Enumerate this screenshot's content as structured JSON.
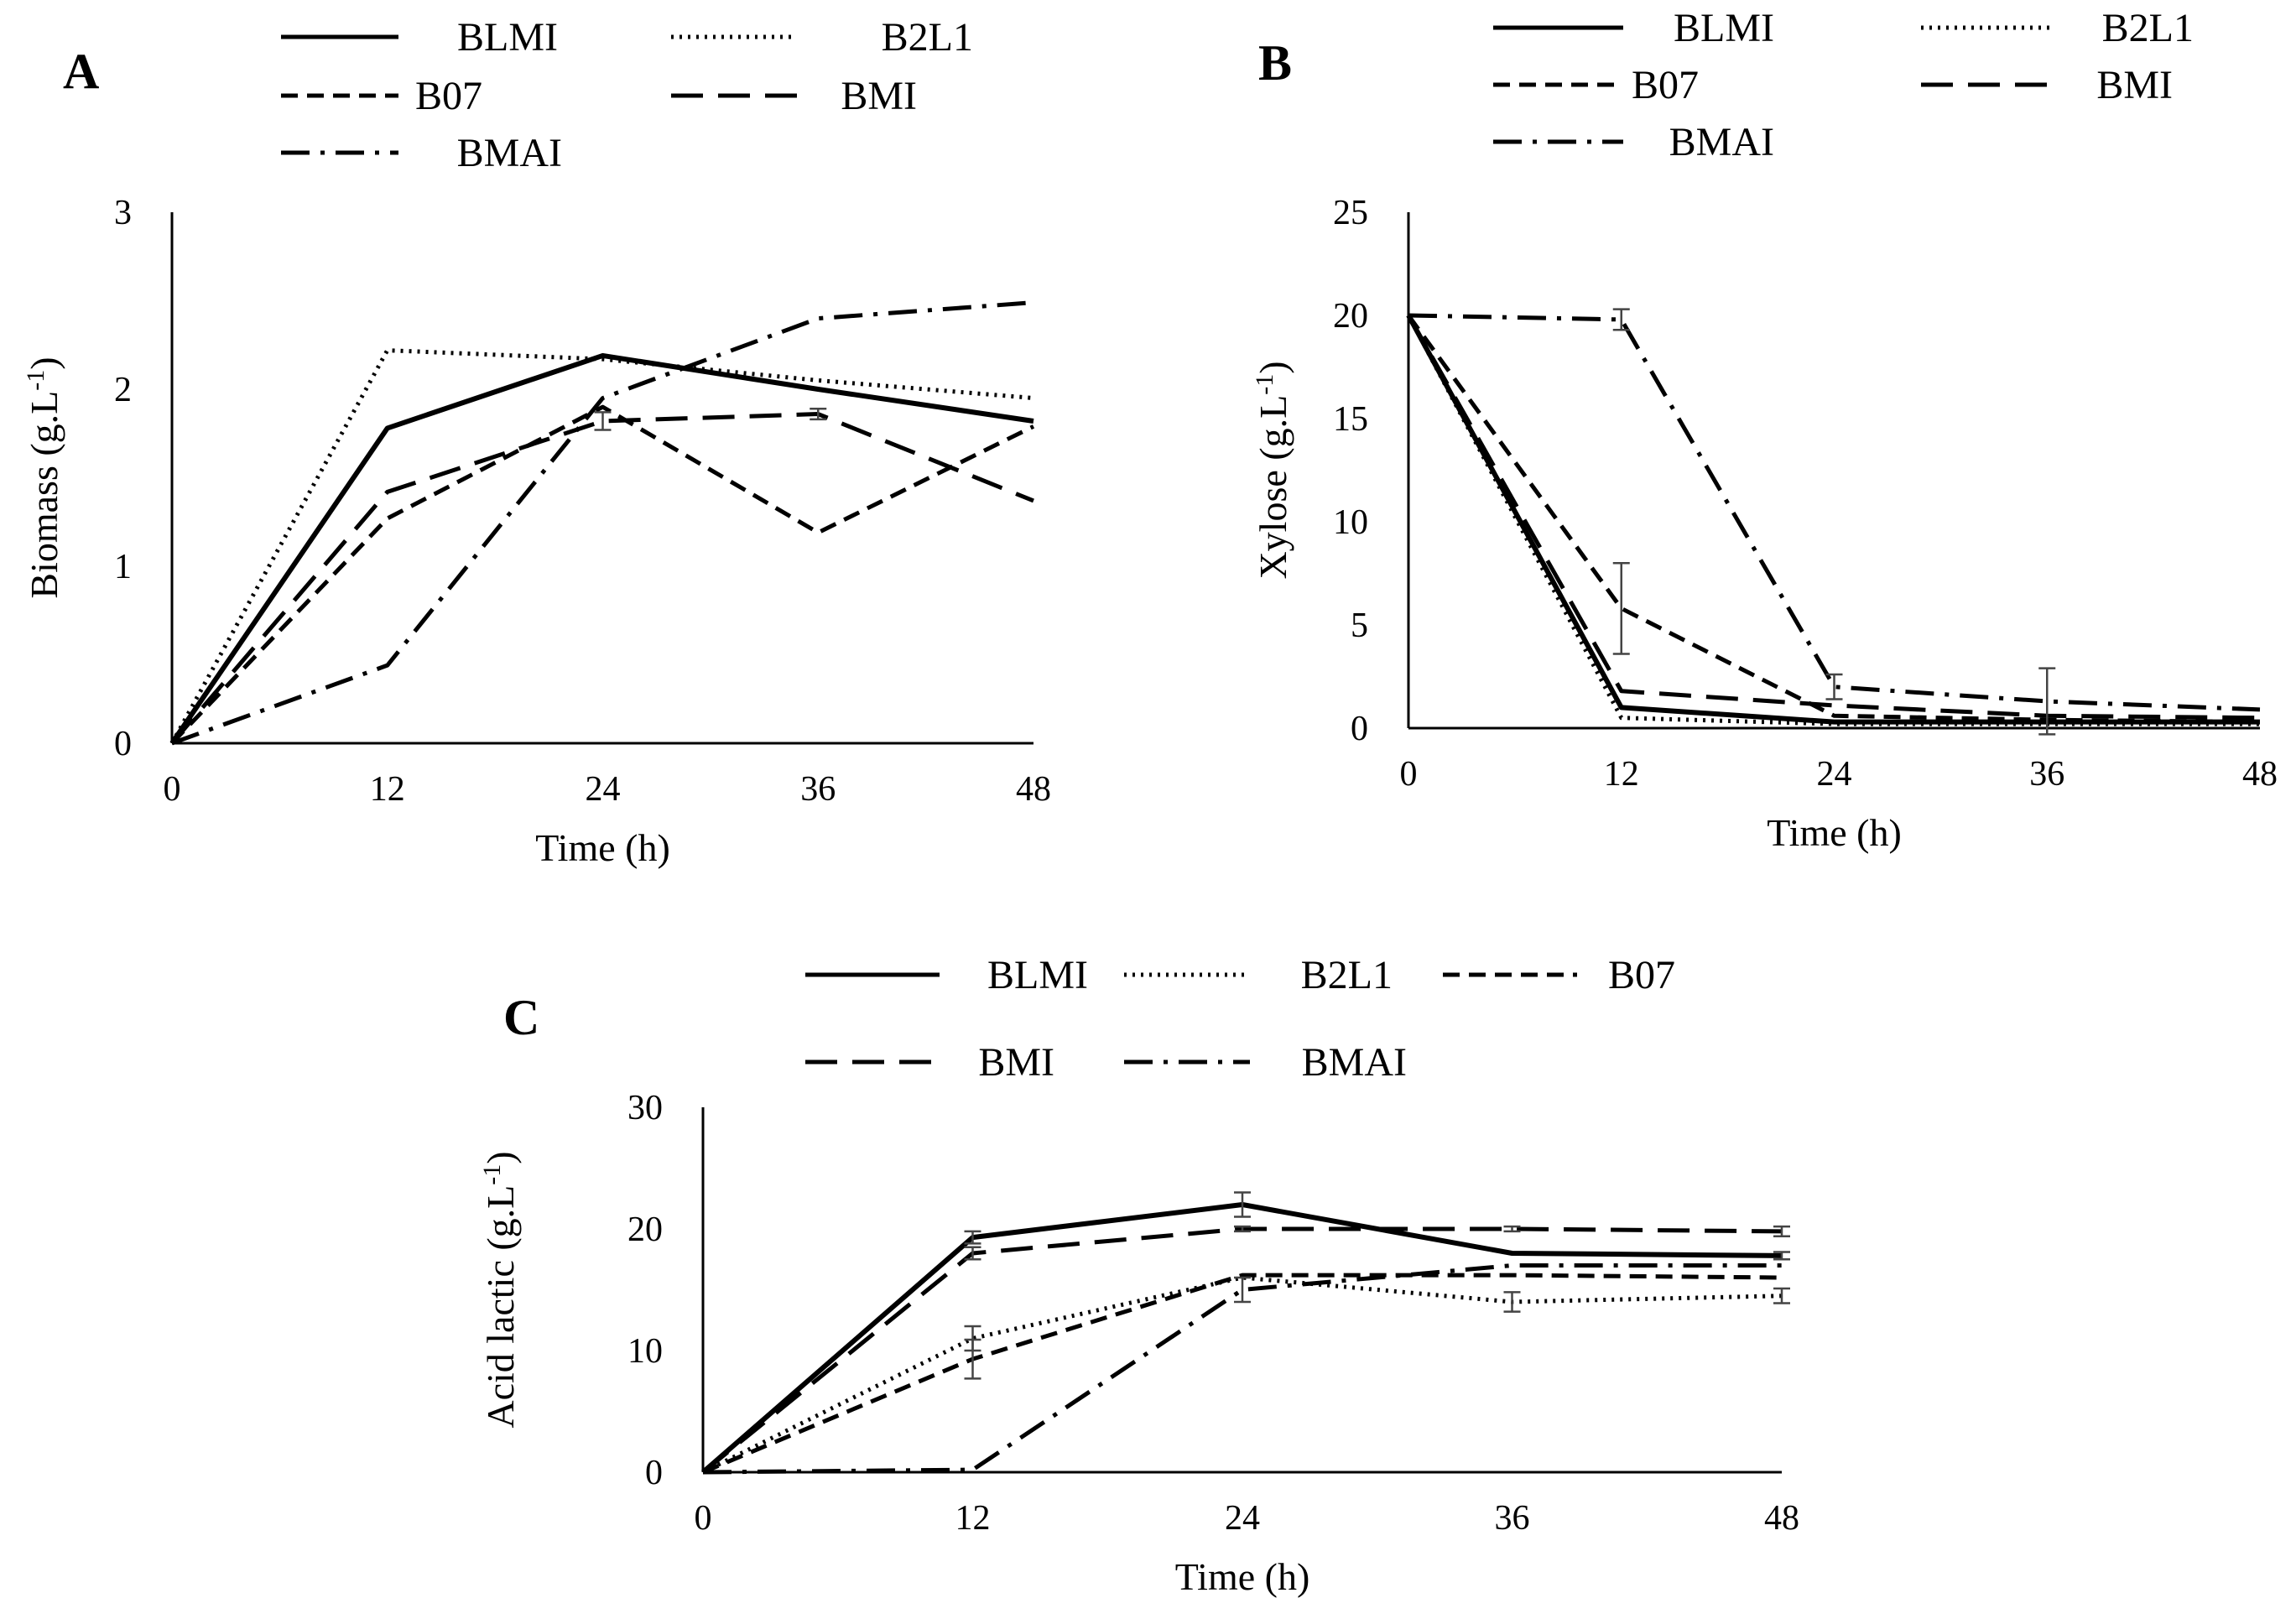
{
  "figure": {
    "legend_styles": {
      "BLMI": "solid",
      "B2L1": "dotted",
      "B07": "short-dash",
      "BMI": "long-dash",
      "BMAI": "dash-dot"
    },
    "line_color": "#000000",
    "errorbar_color": "#444444"
  },
  "chart_data": [
    {
      "id": "A",
      "panel_label": "A",
      "type": "line",
      "xlabel": "Time (h)",
      "ylabel": "Biomass (g.L-1)",
      "ylabel_main": "Biomass (g.L",
      "ylabel_sup": "-1",
      "ylabel_tail": ")",
      "x": [
        0,
        12,
        24,
        36,
        48
      ],
      "x_ticks": [
        "0",
        "12",
        "24",
        "36",
        "48"
      ],
      "ylim": [
        0,
        3
      ],
      "y_ticks": [
        "0",
        "1",
        "2",
        "3"
      ],
      "legend": [
        "BLMI",
        "B2L1",
        "B07",
        "BMI",
        "BMAI"
      ],
      "series": [
        {
          "name": "BLMI",
          "values": [
            0,
            1.78,
            2.19,
            2.0,
            1.82
          ],
          "err": [
            0,
            0,
            0,
            0,
            0
          ]
        },
        {
          "name": "B2L1",
          "values": [
            0,
            2.22,
            2.17,
            2.05,
            1.95
          ],
          "err": [
            0,
            0,
            0,
            0,
            0
          ]
        },
        {
          "name": "B07",
          "values": [
            0,
            1.27,
            1.9,
            1.19,
            1.79
          ],
          "err": [
            0,
            0,
            0,
            0,
            0
          ]
        },
        {
          "name": "BMI",
          "values": [
            0,
            1.42,
            1.82,
            1.86,
            1.37
          ],
          "err": [
            0,
            0,
            0.05,
            0.03,
            0
          ]
        },
        {
          "name": "BMAI",
          "values": [
            0,
            0.44,
            1.95,
            2.4,
            2.49
          ],
          "err": [
            0,
            0,
            0,
            0,
            0
          ]
        }
      ]
    },
    {
      "id": "B",
      "panel_label": "B",
      "type": "line",
      "xlabel": "Time (h)",
      "ylabel": "Xylose (g.L-1)",
      "ylabel_main": "Xylose (g.L",
      "ylabel_sup": "-1",
      "ylabel_tail": ")",
      "x": [
        0,
        12,
        24,
        36,
        48
      ],
      "x_ticks": [
        "0",
        "12",
        "24",
        "36",
        "48"
      ],
      "ylim": [
        0,
        25
      ],
      "y_ticks": [
        "0",
        "5",
        "10",
        "15",
        "20",
        "25"
      ],
      "legend": [
        "BLMI",
        "B2L1",
        "B07",
        "BMI",
        "BMAI"
      ],
      "series": [
        {
          "name": "BLMI",
          "values": [
            20,
            1.0,
            0.3,
            0.3,
            0.3
          ],
          "err": [
            0,
            0,
            0,
            0,
            0
          ]
        },
        {
          "name": "B2L1",
          "values": [
            20,
            0.5,
            0.2,
            0.2,
            0.2
          ],
          "err": [
            0,
            0,
            0,
            0,
            0
          ]
        },
        {
          "name": "B07",
          "values": [
            20,
            5.8,
            0.6,
            0.4,
            0.3
          ],
          "err": [
            0,
            2.2,
            0,
            0,
            0
          ]
        },
        {
          "name": "BMI",
          "values": [
            20,
            1.8,
            1.1,
            0.6,
            0.5
          ],
          "err": [
            0,
            0,
            0,
            0,
            0
          ]
        },
        {
          "name": "BMAI",
          "values": [
            20,
            19.8,
            2.0,
            1.3,
            0.9
          ],
          "err": [
            0,
            0.5,
            0.6,
            1.6,
            0
          ]
        }
      ]
    },
    {
      "id": "C",
      "panel_label": "C",
      "type": "line",
      "xlabel": "Time (h)",
      "ylabel": "Acid lactic (g.L-1)",
      "ylabel_main": "Acid lactic (g.L",
      "ylabel_sup": "-1",
      "ylabel_tail": ")",
      "x": [
        0,
        12,
        24,
        36,
        48
      ],
      "x_ticks": [
        "0",
        "12",
        "24",
        "36",
        "48"
      ],
      "ylim": [
        0,
        30
      ],
      "y_ticks": [
        "0",
        "10",
        "20",
        "30"
      ],
      "legend": [
        "BLMI",
        "B2L1",
        "B07",
        "BMI",
        "BMAI"
      ],
      "series": [
        {
          "name": "BLMI",
          "values": [
            0,
            19.3,
            22.0,
            18.0,
            17.8
          ],
          "err": [
            0,
            0.5,
            1.0,
            0,
            0.3
          ]
        },
        {
          "name": "B2L1",
          "values": [
            0,
            11.0,
            16.0,
            14.0,
            14.5
          ],
          "err": [
            0,
            1.0,
            0,
            0.8,
            0.6
          ]
        },
        {
          "name": "B07",
          "values": [
            0,
            9.3,
            16.2,
            16.2,
            16.0
          ],
          "err": [
            0,
            1.6,
            0,
            0,
            0
          ]
        },
        {
          "name": "BMI",
          "values": [
            0,
            18.0,
            20.0,
            20.0,
            19.8
          ],
          "err": [
            0,
            0.5,
            0.2,
            0.2,
            0.4
          ]
        },
        {
          "name": "BMAI",
          "values": [
            0,
            0.2,
            15.0,
            17.0,
            17.0
          ],
          "err": [
            0,
            0,
            1.0,
            0,
            0
          ]
        }
      ]
    }
  ]
}
